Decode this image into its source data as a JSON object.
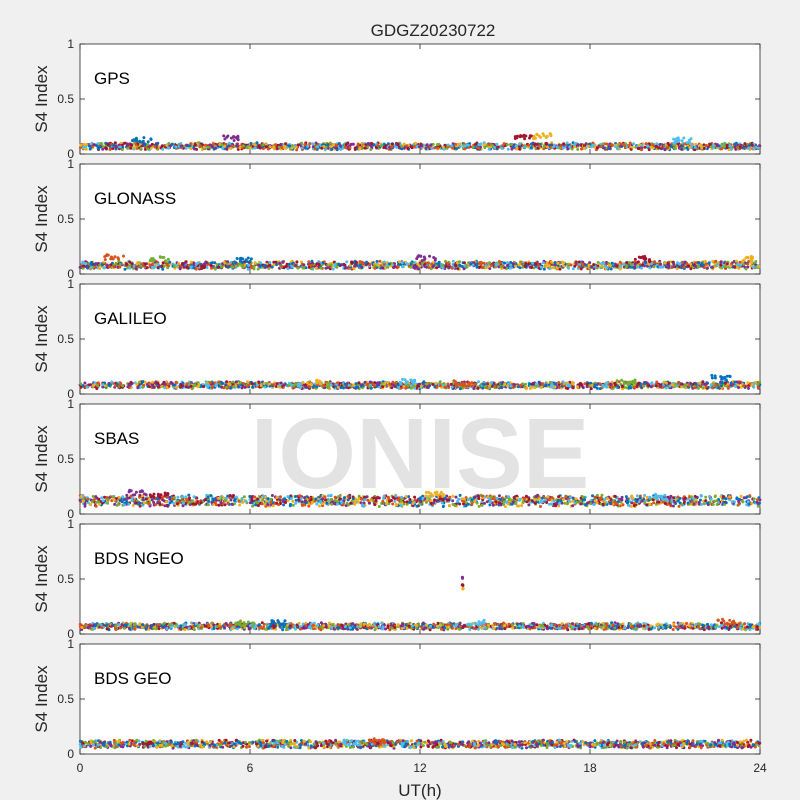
{
  "title": "GDGZ20230722",
  "watermark": "IONISE",
  "xlabel": "UT(h)",
  "ylabel": "S4 Index",
  "colors": [
    "#0072BD",
    "#D95319",
    "#EDB120",
    "#7E2F8E",
    "#77AC30",
    "#4DBEEE",
    "#A2142F"
  ],
  "chart_data": [
    {
      "type": "scatter",
      "title": "GPS",
      "xlabel": "UT(h)",
      "ylabel": "S4 Index",
      "xlim": [
        0,
        24
      ],
      "ylim": [
        0,
        1
      ],
      "xticks": [
        0,
        6,
        12,
        18,
        24
      ],
      "yticks": [
        0,
        0.5,
        1
      ],
      "grid": false,
      "baseline": 0.07,
      "spread": 0.025,
      "bumps": [
        {
          "x": 2.2,
          "y": 0.15
        },
        {
          "x": 5.3,
          "y": 0.17
        },
        {
          "x": 15.6,
          "y": 0.18
        },
        {
          "x": 16.3,
          "y": 0.19
        },
        {
          "x": 21.3,
          "y": 0.15
        }
      ]
    },
    {
      "type": "scatter",
      "title": "GLONASS",
      "xlabel": "UT(h)",
      "ylabel": "S4 Index",
      "xlim": [
        0,
        24
      ],
      "ylim": [
        0,
        1
      ],
      "xticks": [
        0,
        6,
        12,
        18,
        24
      ],
      "yticks": [
        0,
        0.5,
        1
      ],
      "grid": false,
      "baseline": 0.08,
      "spread": 0.03,
      "bumps": [
        {
          "x": 1.2,
          "y": 0.18
        },
        {
          "x": 2.8,
          "y": 0.16
        },
        {
          "x": 5.8,
          "y": 0.15
        },
        {
          "x": 12.2,
          "y": 0.17
        },
        {
          "x": 19.8,
          "y": 0.16
        },
        {
          "x": 23.5,
          "y": 0.16
        }
      ]
    },
    {
      "type": "scatter",
      "title": "GALILEO",
      "xlabel": "UT(h)",
      "ylabel": "S4 Index",
      "xlim": [
        0,
        24
      ],
      "ylim": [
        0,
        1
      ],
      "xticks": [
        0,
        6,
        12,
        18,
        24
      ],
      "yticks": [
        0,
        0.5,
        1
      ],
      "grid": false,
      "baseline": 0.08,
      "spread": 0.025,
      "bumps": [
        {
          "x": 8.2,
          "y": 0.13
        },
        {
          "x": 11.5,
          "y": 0.14
        },
        {
          "x": 13.5,
          "y": 0.12
        },
        {
          "x": 19.3,
          "y": 0.13
        },
        {
          "x": 22.6,
          "y": 0.17
        }
      ]
    },
    {
      "type": "scatter",
      "title": "SBAS",
      "xlabel": "UT(h)",
      "ylabel": "S4 Index",
      "xlim": [
        0,
        24
      ],
      "ylim": [
        0,
        1
      ],
      "xticks": [
        0,
        6,
        12,
        18,
        24
      ],
      "yticks": [
        0,
        0.5,
        1
      ],
      "grid": false,
      "baseline": 0.12,
      "spread": 0.045,
      "bumps": [
        {
          "x": 2.0,
          "y": 0.22
        },
        {
          "x": 2.8,
          "y": 0.2
        },
        {
          "x": 12.5,
          "y": 0.2
        },
        {
          "x": 20.5,
          "y": 0.18
        }
      ]
    },
    {
      "type": "scatter",
      "title": "BDS NGEO",
      "xlabel": "UT(h)",
      "ylabel": "S4 Index",
      "xlim": [
        0,
        24
      ],
      "ylim": [
        0,
        1
      ],
      "xticks": [
        0,
        6,
        12,
        18,
        24
      ],
      "yticks": [
        0,
        0.5,
        1
      ],
      "grid": false,
      "baseline": 0.07,
      "spread": 0.025,
      "bumps": [
        {
          "x": 5.8,
          "y": 0.12
        },
        {
          "x": 7.0,
          "y": 0.13
        },
        {
          "x": 13.5,
          "y": 0.52
        },
        {
          "x": 13.5,
          "y": 0.46
        },
        {
          "x": 13.5,
          "y": 0.42
        },
        {
          "x": 14.0,
          "y": 0.13
        },
        {
          "x": 22.8,
          "y": 0.14
        }
      ]
    },
    {
      "type": "scatter",
      "title": "BDS GEO",
      "xlabel": "UT(h)",
      "ylabel": "S4 Index",
      "xlim": [
        0,
        24
      ],
      "ylim": [
        0,
        1
      ],
      "xticks": [
        0,
        6,
        12,
        18,
        24
      ],
      "yticks": [
        0,
        0.5,
        1
      ],
      "grid": false,
      "baseline": 0.09,
      "spread": 0.03,
      "bumps": [
        {
          "x": 9.5,
          "y": 0.13
        },
        {
          "x": 10.5,
          "y": 0.14
        }
      ]
    }
  ]
}
